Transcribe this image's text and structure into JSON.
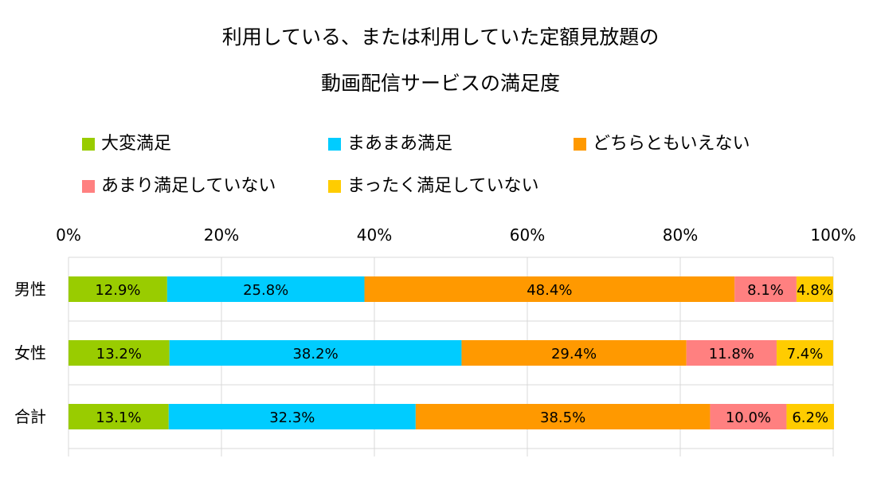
{
  "chart_data": {
    "type": "bar",
    "orientation": "horizontal",
    "stacked": true,
    "percent": true,
    "title": [
      "利用している、または利用していた定額見放題の",
      "動画配信サービスの満足度"
    ],
    "categories": [
      "男性",
      "女性",
      "合計"
    ],
    "xlim": [
      0,
      100
    ],
    "x_ticks": [
      "0%",
      "20%",
      "40%",
      "60%",
      "80%",
      "100%"
    ],
    "grid": "vertical",
    "legend_position": "top",
    "series": [
      {
        "name": "大変満足",
        "color": "#99CC00",
        "values": [
          12.9,
          13.2,
          13.1
        ],
        "labels": [
          "12.9%",
          "13.2%",
          "13.1%"
        ]
      },
      {
        "name": "まあまあ満足",
        "color": "#00CCFF",
        "values": [
          25.8,
          38.2,
          32.3
        ],
        "labels": [
          "25.8%",
          "38.2%",
          "32.3%"
        ]
      },
      {
        "name": "どちらともいえない",
        "color": "#FF9900",
        "values": [
          48.4,
          29.4,
          38.5
        ],
        "labels": [
          "48.4%",
          "29.4%",
          "38.5%"
        ]
      },
      {
        "name": "あまり満足していない",
        "color": "#FF8080",
        "values": [
          8.1,
          11.8,
          10.0
        ],
        "labels": [
          "8.1%",
          "11.8%",
          "10.0%"
        ]
      },
      {
        "name": "まったく満足していない",
        "color": "#FFCC00",
        "values": [
          4.8,
          7.4,
          6.2
        ],
        "labels": [
          "4.8%",
          "7.4%",
          "6.2%"
        ]
      }
    ]
  }
}
